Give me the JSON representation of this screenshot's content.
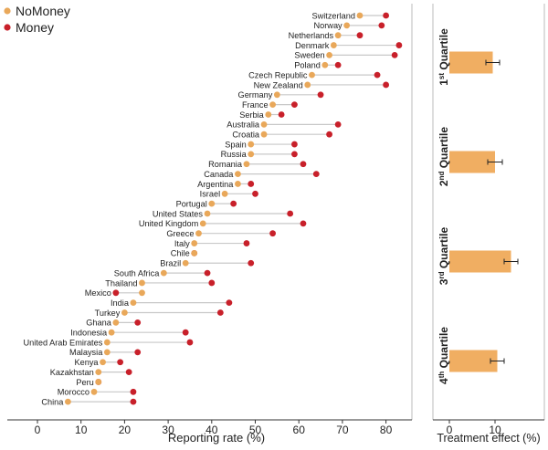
{
  "chart_data": [
    {
      "type": "dot",
      "legend": [
        {
          "name": "NoMoney",
          "color": "#E9A85A"
        },
        {
          "name": "Money",
          "color": "#C8202A"
        }
      ],
      "xlabel": "Reporting rate (%)",
      "xlim": [
        -5,
        85
      ],
      "xticks": [
        0,
        10,
        20,
        30,
        40,
        50,
        60,
        70,
        80
      ],
      "grid": false,
      "rows": [
        {
          "country": "Switzerland",
          "nomoney": 74,
          "money": 80
        },
        {
          "country": "Norway",
          "nomoney": 71,
          "money": 79
        },
        {
          "country": "Netherlands",
          "nomoney": 69,
          "money": 74
        },
        {
          "country": "Denmark",
          "nomoney": 68,
          "money": 83
        },
        {
          "country": "Sweden",
          "nomoney": 67,
          "money": 82
        },
        {
          "country": "Poland",
          "nomoney": 66,
          "money": 69
        },
        {
          "country": "Czech Republic",
          "nomoney": 63,
          "money": 78
        },
        {
          "country": "New Zealand",
          "nomoney": 62,
          "money": 80
        },
        {
          "country": "Germany",
          "nomoney": 55,
          "money": 65
        },
        {
          "country": "France",
          "nomoney": 54,
          "money": 59
        },
        {
          "country": "Serbia",
          "nomoney": 53,
          "money": 56
        },
        {
          "country": "Australia",
          "nomoney": 52,
          "money": 69
        },
        {
          "country": "Croatia",
          "nomoney": 52,
          "money": 67
        },
        {
          "country": "Spain",
          "nomoney": 49,
          "money": 59
        },
        {
          "country": "Russia",
          "nomoney": 49,
          "money": 59
        },
        {
          "country": "Romania",
          "nomoney": 48,
          "money": 61
        },
        {
          "country": "Canada",
          "nomoney": 46,
          "money": 64
        },
        {
          "country": "Argentina",
          "nomoney": 46,
          "money": 49
        },
        {
          "country": "Israel",
          "nomoney": 43,
          "money": 50
        },
        {
          "country": "Portugal",
          "nomoney": 40,
          "money": 45
        },
        {
          "country": "United States",
          "nomoney": 39,
          "money": 58
        },
        {
          "country": "United Kingdom",
          "nomoney": 38,
          "money": 61
        },
        {
          "country": "Greece",
          "nomoney": 37,
          "money": 54
        },
        {
          "country": "Italy",
          "nomoney": 36,
          "money": 48
        },
        {
          "country": "Chile",
          "nomoney": 36,
          "money": 36
        },
        {
          "country": "Brazil",
          "nomoney": 34,
          "money": 49
        },
        {
          "country": "South Africa",
          "nomoney": 29,
          "money": 39
        },
        {
          "country": "Thailand",
          "nomoney": 24,
          "money": 40
        },
        {
          "country": "Mexico",
          "nomoney": 24,
          "money": 18
        },
        {
          "country": "India",
          "nomoney": 22,
          "money": 44
        },
        {
          "country": "Turkey",
          "nomoney": 20,
          "money": 42
        },
        {
          "country": "Ghana",
          "nomoney": 18,
          "money": 23
        },
        {
          "country": "Indonesia",
          "nomoney": 17,
          "money": 34
        },
        {
          "country": "United Arab Emirates",
          "nomoney": 16,
          "money": 35
        },
        {
          "country": "Malaysia",
          "nomoney": 16,
          "money": 23
        },
        {
          "country": "Kenya",
          "nomoney": 15,
          "money": 19
        },
        {
          "country": "Kazakhstan",
          "nomoney": 14,
          "money": 21
        },
        {
          "country": "Peru",
          "nomoney": 14,
          "money": 14
        },
        {
          "country": "Morocco",
          "nomoney": 13,
          "money": 22
        },
        {
          "country": "China",
          "nomoney": 7,
          "money": 22
        }
      ]
    },
    {
      "type": "bar",
      "orientation": "horizontal",
      "xlabel": "Treatment effect (%)",
      "xlim": [
        -3,
        17
      ],
      "xticks": [
        0,
        10
      ],
      "bar_color": "#F0AE62",
      "groups": [
        {
          "label_main": "1",
          "label_sup": "st",
          "label_rest": " Quartile",
          "value": 9.5,
          "error": 1.5
        },
        {
          "label_main": "2",
          "label_sup": "nd",
          "label_rest": " Quartile",
          "value": 10,
          "error": 1.6
        },
        {
          "label_main": "3",
          "label_sup": "rd",
          "label_rest": " Quartile",
          "value": 13.5,
          "error": 1.5
        },
        {
          "label_main": "4",
          "label_sup": "th",
          "label_rest": " Quartile",
          "value": 10.5,
          "error": 1.5
        }
      ]
    }
  ]
}
